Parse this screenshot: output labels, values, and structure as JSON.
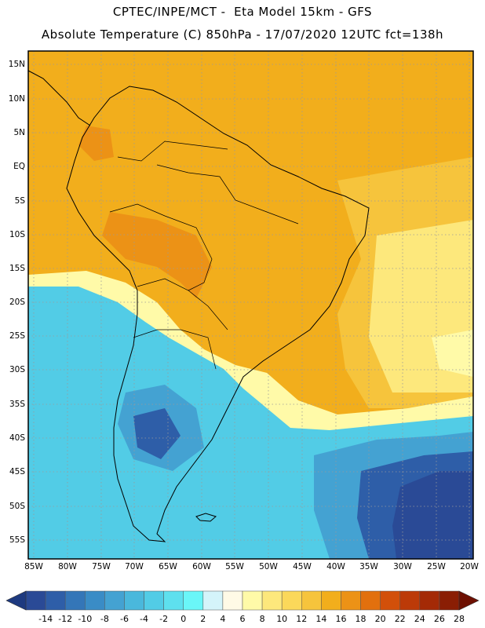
{
  "header": {
    "line1": "CPTEC/INPE/MCT -  Eta Model 15km - GFS",
    "line2": "Absolute Temperature (C) 850hPa - 17/07/2020 12UTC fct=138h"
  },
  "lat_labels": [
    "15N",
    "10N",
    "5N",
    "EQ",
    "5S",
    "10S",
    "15S",
    "20S",
    "25S",
    "30S",
    "35S",
    "40S",
    "45S",
    "50S",
    "55S"
  ],
  "lon_labels": [
    "85W",
    "80W",
    "75W",
    "70W",
    "65W",
    "60W",
    "55W",
    "50W",
    "45W",
    "40W",
    "35W",
    "30W",
    "25W",
    "20W"
  ],
  "colorbar": {
    "labels": [
      "-14",
      "-12",
      "-10",
      "-8",
      "-6",
      "-4",
      "-2",
      "0",
      "2",
      "4",
      "6",
      "8",
      "10",
      "12",
      "14",
      "16",
      "18",
      "20",
      "22",
      "24",
      "26",
      "28"
    ],
    "colors": [
      "#2a4a96",
      "#2e5ea8",
      "#3476b8",
      "#3a8cc6",
      "#44a2d2",
      "#4ab8dc",
      "#52cce6",
      "#5ee0ee",
      "#6af6f8",
      "#d4f4fa",
      "#fffae6",
      "#fffaa8",
      "#fde87c",
      "#fbd85a",
      "#f6c43c",
      "#f2ae1c",
      "#ec9216",
      "#e2700e",
      "#d2500a",
      "#bc3a08",
      "#a42a06",
      "#8a1e04"
    ]
  },
  "field_colors": {
    "tropical": "#f2ae1c",
    "warm": "#f6c43c",
    "hot": "#ec9216",
    "cool": "#fde87c",
    "mild": "#fffaa8",
    "cold": "#52cce6",
    "colder": "#44a2d2",
    "coldest": "#2e5ea8",
    "frigid": "#2a4a96"
  }
}
